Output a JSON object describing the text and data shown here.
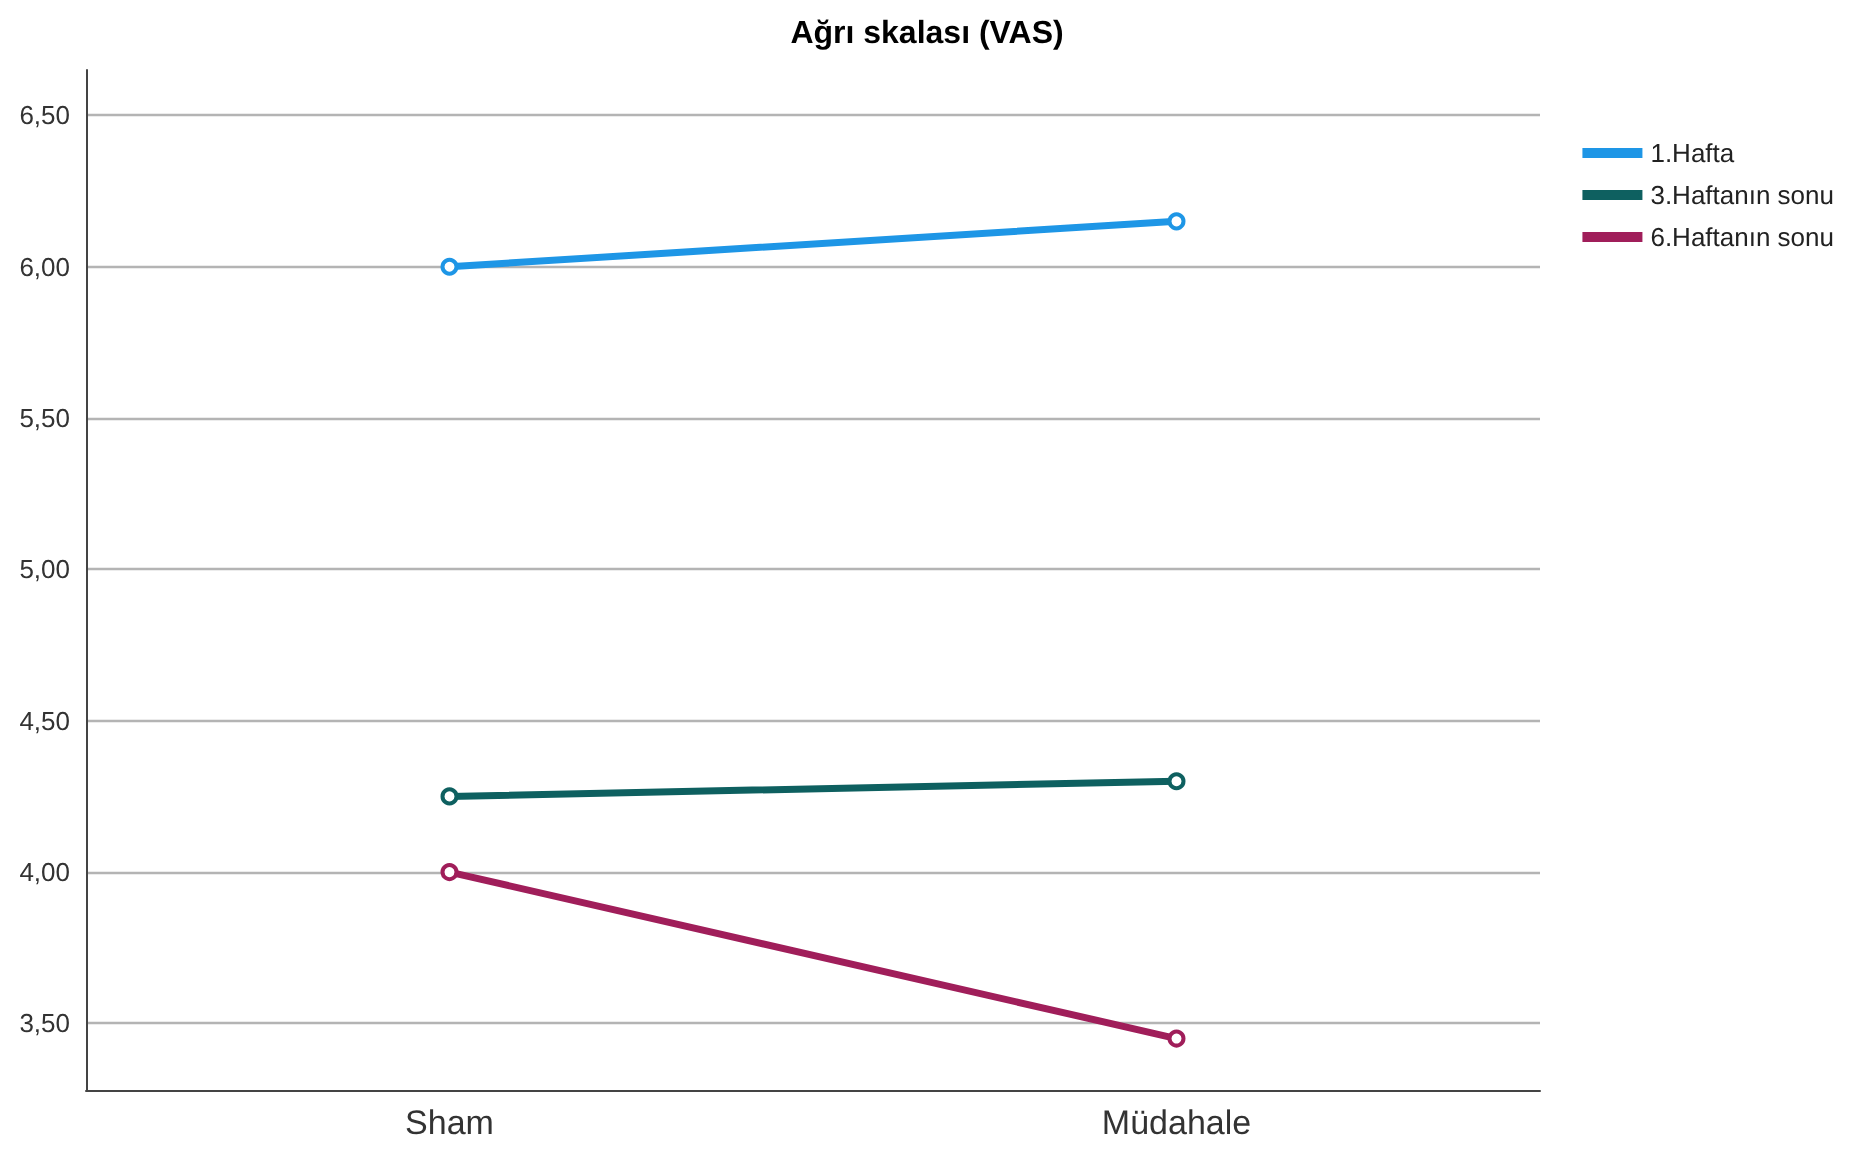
{
  "chart_data": {
    "type": "line",
    "title": "Ağrı skalası (VAS)",
    "categories": [
      "Sham",
      "Müdahale"
    ],
    "series": [
      {
        "name": "1.Hafta",
        "color": "#1e96e6",
        "values": [
          6.0,
          6.15
        ]
      },
      {
        "name": "3.Haftanın sonu",
        "color": "#0e6060",
        "values": [
          4.25,
          4.3
        ]
      },
      {
        "name": "6.Haftanın sonu",
        "color": "#a01e5a",
        "values": [
          4.0,
          3.45
        ]
      }
    ],
    "ylim": [
      3.28,
      6.65
    ],
    "yticks": [
      {
        "value": 3.5,
        "label": "3,50"
      },
      {
        "value": 4,
        "label": "4,00"
      },
      {
        "value": 4.5,
        "label": "4,50"
      },
      {
        "value": 5,
        "label": "5,00"
      },
      {
        "value": 5.5,
        "label": "5,50"
      },
      {
        "value": 6,
        "label": "6,00"
      },
      {
        "value": 6.5,
        "label": "6,50"
      }
    ],
    "grid": "y",
    "legend": "top right",
    "marker": "circle",
    "line_style": "solid"
  }
}
